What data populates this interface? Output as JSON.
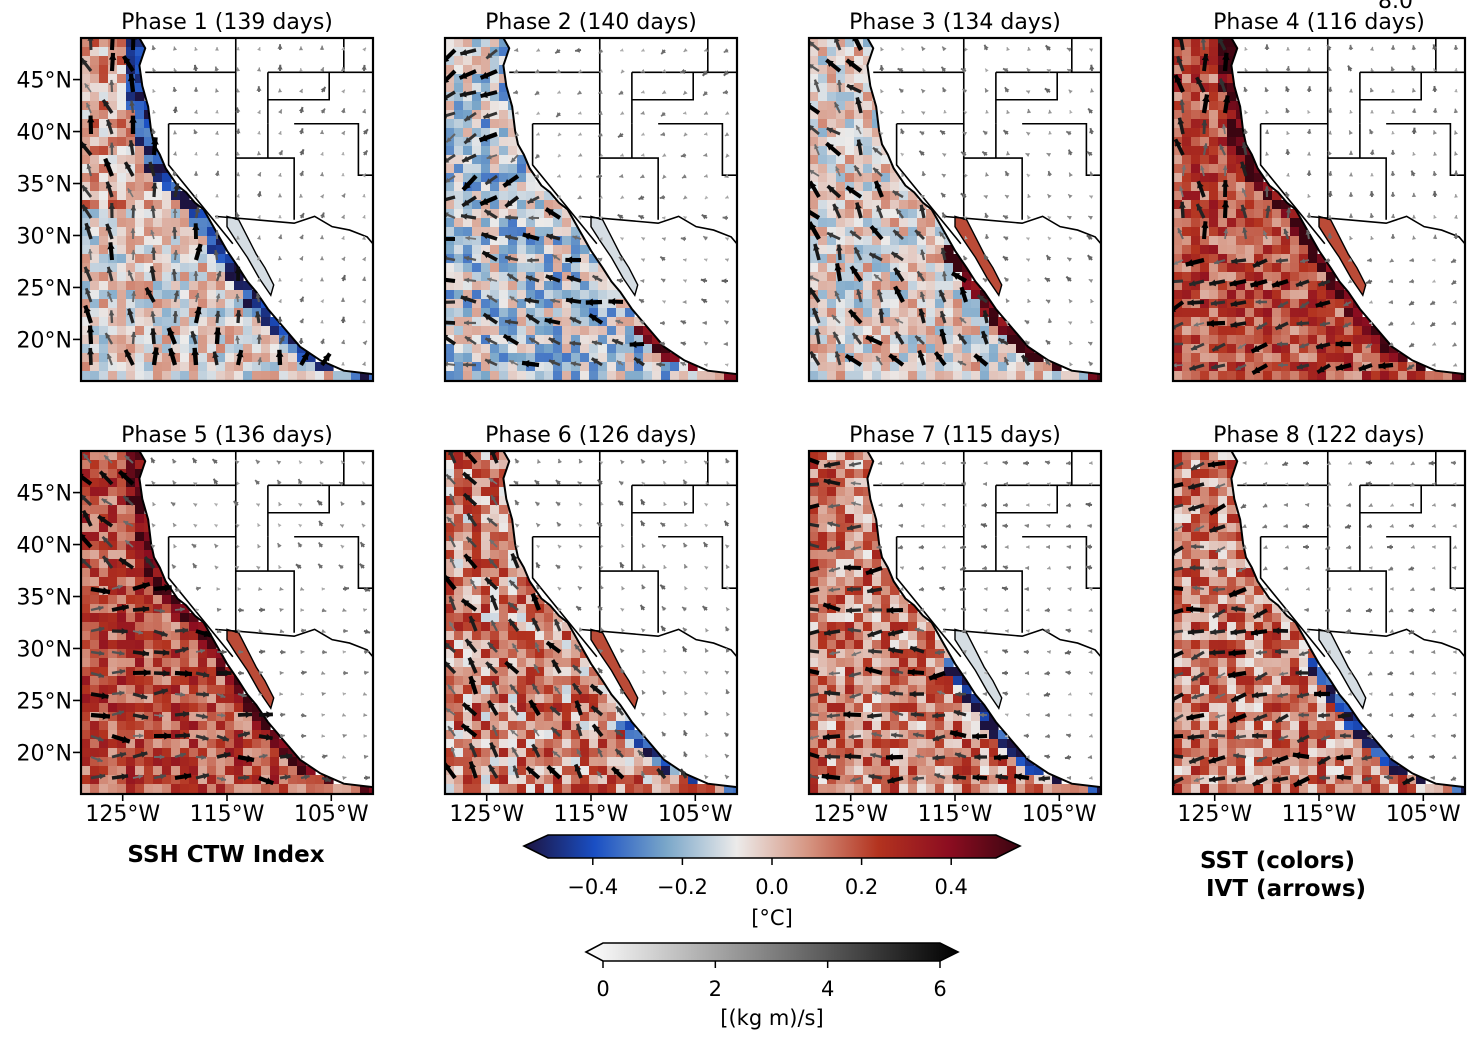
{
  "figure": {
    "index_label": "SSH CTW Index",
    "legend_line1": "SST (colors)",
    "legend_line2": "IVT (arrows)",
    "stray_text": "8.0"
  },
  "panels": [
    {
      "title": "Phase 1 (139 days)",
      "sst_pattern": "cool-coastal",
      "ivt_pattern": "onshore-southerly"
    },
    {
      "title": "Phase 2 (140 days)",
      "sst_pattern": "cool-widespread",
      "ivt_pattern": "westerly-southerly"
    },
    {
      "title": "Phase 3 (134 days)",
      "sst_pattern": "warm-southern-coast",
      "ivt_pattern": "weak-mixed"
    },
    {
      "title": "Phase 4 (116 days)",
      "sst_pattern": "warm-widespread",
      "ivt_pattern": "northerly-southerly"
    },
    {
      "title": "Phase 5 (136 days)",
      "sst_pattern": "warm-widespread",
      "ivt_pattern": "onshore-westerly"
    },
    {
      "title": "Phase 6 (126 days)",
      "sst_pattern": "warm-mixed",
      "ivt_pattern": "northerly"
    },
    {
      "title": "Phase 7 (115 days)",
      "sst_pattern": "cool-southern-coast",
      "ivt_pattern": "easterly"
    },
    {
      "title": "Phase 8 (122 days)",
      "sst_pattern": "cool-southern-coast",
      "ivt_pattern": "easterly-offshore"
    }
  ],
  "map_axes": {
    "lat_ticks": [
      "45°N",
      "40°N",
      "35°N",
      "30°N",
      "25°N",
      "20°N"
    ],
    "lon_ticks": [
      "125°W",
      "115°W",
      "105°W"
    ],
    "lat_range": [
      16,
      49
    ],
    "lon_range": [
      -129,
      -101
    ]
  },
  "sst_colorbar": {
    "ticks": [
      "−0.4",
      "−0.2",
      "0.0",
      "0.2",
      "0.4"
    ],
    "range": [
      -0.5,
      0.5
    ],
    "units": "[°C]",
    "extend": "both",
    "colors": [
      "#1c1340",
      "#1a4fc4",
      "#79a6c9",
      "#ecebea",
      "#d69683",
      "#b3331f",
      "#8c0d20",
      "#3b0511"
    ]
  },
  "ivt_colorbar": {
    "ticks": [
      "0",
      "2",
      "4",
      "6"
    ],
    "range": [
      0,
      6
    ],
    "units": "[(kg m)/s]",
    "extend": "both",
    "colors": [
      "#ffffff",
      "#000000"
    ]
  }
}
